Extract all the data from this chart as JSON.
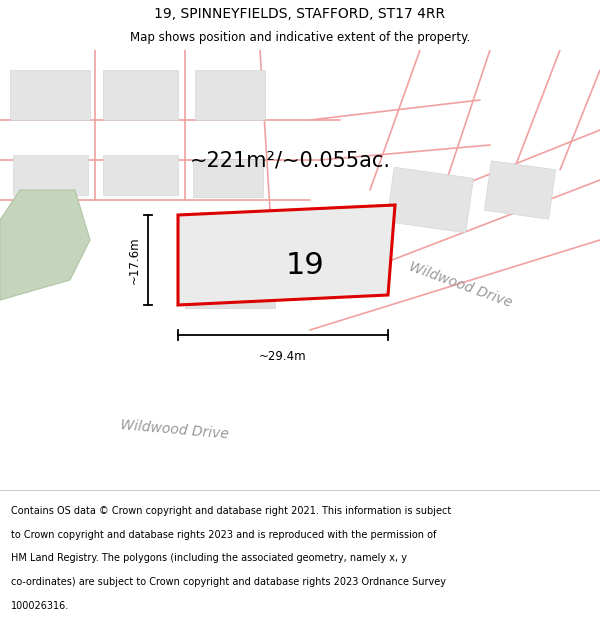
{
  "title": "19, SPINNEYFIELDS, STAFFORD, ST17 4RR",
  "subtitle": "Map shows position and indicative extent of the property.",
  "footer_lines": [
    "Contains OS data © Crown copyright and database right 2021. This information is subject",
    "to Crown copyright and database rights 2023 and is reproduced with the permission of",
    "HM Land Registry. The polygons (including the associated geometry, namely x, y",
    "co-ordinates) are subject to Crown copyright and database rights 2023 Ordnance Survey",
    "100026316."
  ],
  "bg_color": "#f5f4f2",
  "road_color": "#f0a0a0",
  "property_color": "#dd0000",
  "property_fill": "#ebebeb",
  "green_color": "#c5d5bb",
  "green_edge": "#b0c5a5",
  "label_17_6": "~17.6m",
  "label_29_4": "~29.4m",
  "label_area": "~221m²/~0.055ac.",
  "label_number": "19",
  "street_label": "Wildwood Drive",
  "title_fontsize": 10,
  "subtitle_fontsize": 8.5,
  "footer_fontsize": 7.0,
  "area_fontsize": 15,
  "number_fontsize": 22,
  "dim_fontsize": 8.5,
  "street_fontsize": 10
}
